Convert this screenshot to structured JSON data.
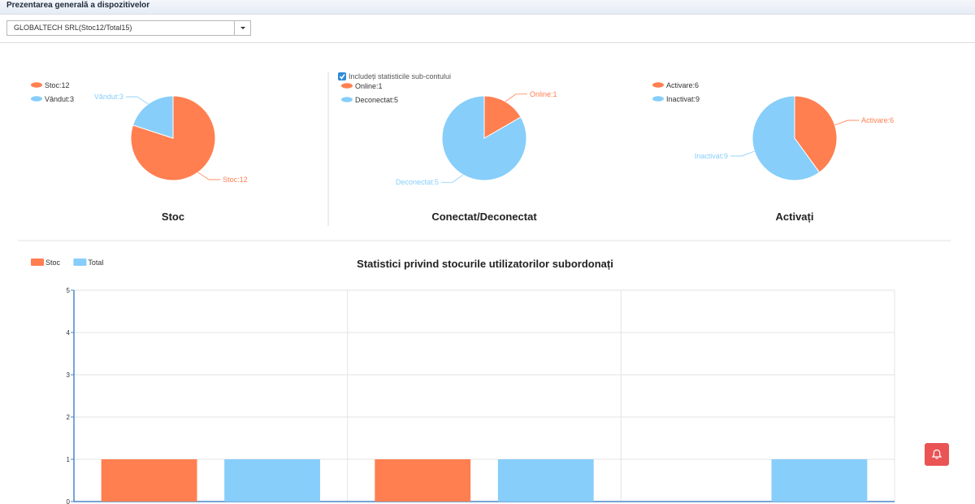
{
  "header": {
    "title": "Prezentarea generală a dispozitivelor"
  },
  "account_select": {
    "value": "GLOBALTECH SRL(Stoc12/Total15)"
  },
  "colors": {
    "orange": "#ff7f50",
    "blue": "#87cefa",
    "alert": "#ea5455"
  },
  "subaccount_checkbox": {
    "label": "Includeți statisticile sub-contului",
    "checked": true
  },
  "pies": [
    {
      "title": "Stoc",
      "legend": [
        "Stoc:12",
        "Vândut:3"
      ],
      "slices": [
        {
          "name": "Stoc",
          "value": 12,
          "label": "Stoc:12"
        },
        {
          "name": "Vândut",
          "value": 3,
          "label": "Vândut:3"
        }
      ]
    },
    {
      "title": "Conectat/Deconectat",
      "legend": [
        "Online:1",
        "Deconectat:5"
      ],
      "slices": [
        {
          "name": "Online",
          "value": 1,
          "label": "Online:1"
        },
        {
          "name": "Deconectat",
          "value": 5,
          "label": "Deconectat:5"
        }
      ]
    },
    {
      "title": "Activați",
      "legend": [
        "Activare:6",
        "Inactivat:9"
      ],
      "slices": [
        {
          "name": "Activare",
          "value": 6,
          "label": "Activare:6"
        },
        {
          "name": "Inactivat",
          "value": 9,
          "label": "Inactivat:9"
        }
      ]
    }
  ],
  "chart_data": {
    "type": "bar",
    "title": "Statistici privind stocurile utilizatorilor subordonați",
    "xlabel": "",
    "ylabel": "",
    "ylim": [
      0,
      5
    ],
    "yticks": [
      "0",
      "1",
      "2",
      "3",
      "4",
      "5"
    ],
    "grid": true,
    "legend_position": "top-left",
    "categories": [
      "",
      "",
      ""
    ],
    "series": [
      {
        "name": "Stoc",
        "values": [
          1,
          1,
          0
        ]
      },
      {
        "name": "Total",
        "values": [
          1,
          1,
          1
        ]
      }
    ]
  }
}
